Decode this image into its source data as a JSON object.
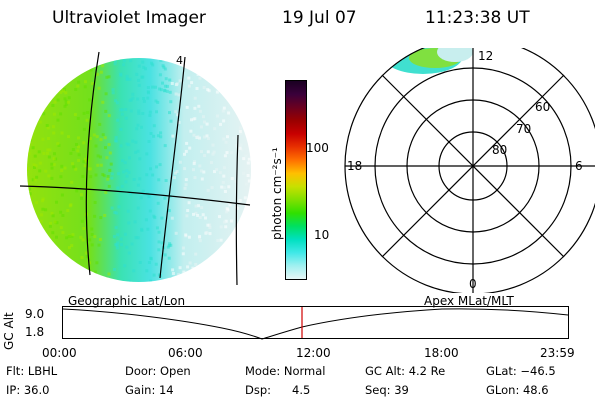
{
  "header": {
    "title": "Ultraviolet Imager",
    "date": "19 Jul 07",
    "time": "11:23:38 UT"
  },
  "colorbar": {
    "label": "photon cm⁻²s⁻¹",
    "ticks": [
      "100",
      "10"
    ],
    "colors": [
      "#1a0022",
      "#3a003a",
      "#6a0020",
      "#9a0000",
      "#c80000",
      "#e83000",
      "#ff7000",
      "#ffc000",
      "#c8e000",
      "#80e000",
      "#30e000",
      "#00e060",
      "#00e0c0",
      "#40e8e8",
      "#a0f0f0",
      "#e6f6f6"
    ]
  },
  "polar": {
    "mlt_labels": {
      "top": "12",
      "left": "18",
      "right": "6",
      "bottom": "0"
    },
    "lat_labels": [
      "60",
      "70",
      "80"
    ]
  },
  "panel_labels": {
    "left": "Geographic Lat/Lon",
    "right": "Apex MLat/MLT"
  },
  "orbit": {
    "ylabel": "GC Alt",
    "y_ticks": [
      "9.0",
      "1.8"
    ],
    "x_ticks": [
      "00:00",
      "06:00",
      "12:00",
      "18:00",
      "23:59"
    ],
    "marker_color": "#d00000"
  },
  "meridian_label": "4",
  "info": {
    "row1": {
      "flt": "Flt: LBHL",
      "door": "Door: Open",
      "mode": "Mode: Normal",
      "gcalt": "GC Alt: 4.2 Re",
      "glat": "GLat: −46.5"
    },
    "row2": {
      "ip": "IP: 36.0",
      "gain": "Gain: 14",
      "dsp_label": "Dsp:",
      "dsp_value": "4.5",
      "seq": "Seq: 39",
      "glon": "GLon:  48.6"
    }
  }
}
